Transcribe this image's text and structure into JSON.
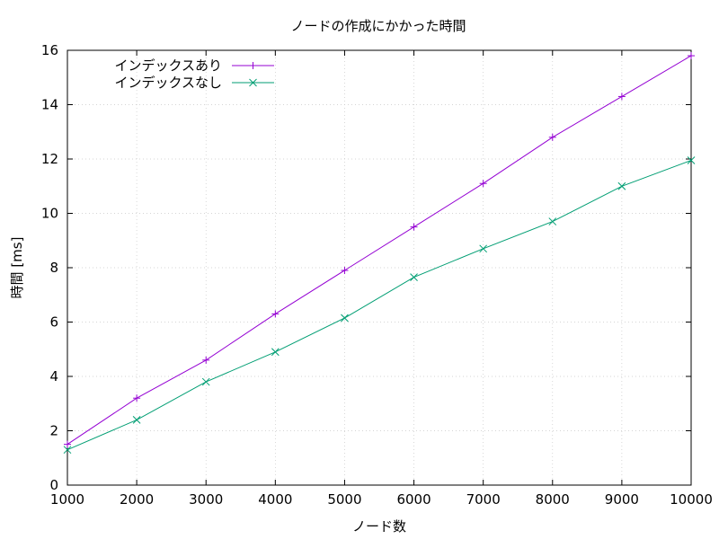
{
  "chart_data": {
    "type": "line",
    "title": "ノードの作成にかかった時間",
    "xlabel": "ノード数",
    "ylabel": "時間 [ms]",
    "x": [
      1000,
      2000,
      3000,
      4000,
      5000,
      6000,
      7000,
      8000,
      9000,
      10000
    ],
    "xlim": [
      1000,
      10000
    ],
    "ylim": [
      0,
      16
    ],
    "xticks": [
      1000,
      2000,
      3000,
      4000,
      5000,
      6000,
      7000,
      8000,
      9000,
      10000
    ],
    "yticks": [
      0,
      2,
      4,
      6,
      8,
      10,
      12,
      14,
      16
    ],
    "grid": true,
    "legend_position": "top-left",
    "series": [
      {
        "name": "インデックスあり",
        "color": "#9400d3",
        "marker": "plus",
        "values": [
          1.5,
          3.2,
          4.6,
          6.3,
          7.9,
          9.5,
          11.1,
          12.8,
          14.3,
          15.8
        ]
      },
      {
        "name": "インデックスなし",
        "color": "#009e73",
        "marker": "cross",
        "values": [
          1.3,
          2.4,
          3.8,
          4.9,
          6.15,
          7.65,
          8.7,
          9.7,
          11.0,
          11.95
        ]
      }
    ]
  }
}
